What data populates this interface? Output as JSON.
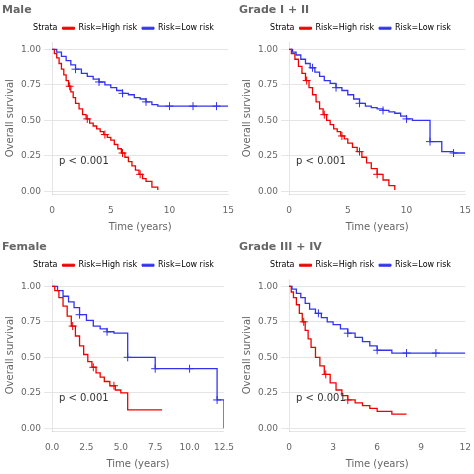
{
  "chart_data": [
    {
      "type": "step",
      "title": "Male",
      "x_label": "Time (years)",
      "y_label": "Overall survival",
      "xlim": [
        0,
        15
      ],
      "ylim": [
        -0.02,
        1.05
      ],
      "xticks": [
        0,
        5,
        10,
        15
      ],
      "yticks": [
        {
          "value": 0,
          "label": "0.00"
        },
        0.25,
        {
          "value": 0.5,
          "label": "0.50"
        },
        0.75,
        {
          "value": 1,
          "label": "1.00"
        }
      ],
      "grid": "y",
      "legend": "top",
      "legend_title": "Strata",
      "annotation": "p < 0.001",
      "series": [
        {
          "name": "Risk=High risk",
          "color": "#EE0000",
          "marker": "cross",
          "x": [
            0,
            0.2,
            0.4,
            0.6,
            0.8,
            1.0,
            1.2,
            1.4,
            1.6,
            1.8,
            2.0,
            2.3,
            2.6,
            2.9,
            3.2,
            3.5,
            3.8,
            4.1,
            4.4,
            4.7,
            5.0,
            5.3,
            5.6,
            5.9,
            6.2,
            6.5,
            6.8,
            7.1,
            7.4,
            7.7,
            8.0,
            8.5,
            9.0
          ],
          "values": [
            1.0,
            0.97,
            0.94,
            0.9,
            0.86,
            0.82,
            0.78,
            0.74,
            0.7,
            0.66,
            0.62,
            0.58,
            0.54,
            0.51,
            0.48,
            0.46,
            0.44,
            0.42,
            0.4,
            0.38,
            0.36,
            0.33,
            0.3,
            0.27,
            0.24,
            0.21,
            0.18,
            0.15,
            0.12,
            0.09,
            0.07,
            0.03,
            0.01
          ],
          "censor_x": [
            1.5,
            3.0,
            4.5,
            6.0,
            7.5
          ],
          "censor_values": [
            0.74,
            0.51,
            0.4,
            0.27,
            0.12
          ]
        },
        {
          "name": "Risk=Low risk",
          "color": "#3333EE",
          "marker": "cross",
          "x": [
            0,
            0.4,
            0.8,
            1.2,
            1.6,
            2.0,
            2.5,
            3.0,
            3.5,
            4.0,
            4.5,
            5.0,
            5.5,
            6.0,
            6.5,
            7.0,
            7.5,
            8.0,
            8.5,
            9.0,
            10.0,
            11.0,
            12.0,
            13.0,
            14.0,
            15.0
          ],
          "values": [
            1.0,
            0.98,
            0.95,
            0.92,
            0.89,
            0.86,
            0.83,
            0.81,
            0.79,
            0.77,
            0.75,
            0.73,
            0.71,
            0.69,
            0.68,
            0.66,
            0.65,
            0.63,
            0.61,
            0.6,
            0.6,
            0.6,
            0.6,
            0.6,
            0.6,
            0.6
          ],
          "censor_x": [
            2.0,
            4.0,
            6.0,
            8.0,
            10.0,
            12.0,
            14.0
          ],
          "censor_values": [
            0.86,
            0.77,
            0.69,
            0.63,
            0.6,
            0.6,
            0.6
          ]
        }
      ]
    },
    {
      "type": "step",
      "title": "Grade I + II",
      "x_label": "Time (years)",
      "y_label": "Overall survival",
      "xlim": [
        0,
        15
      ],
      "ylim": [
        -0.02,
        1.05
      ],
      "xticks": [
        0,
        5,
        10,
        15
      ],
      "yticks": [
        {
          "value": 0,
          "label": "0.00"
        },
        0.25,
        {
          "value": 0.5,
          "label": "0.50"
        },
        0.75,
        {
          "value": 1,
          "label": "1.00"
        }
      ],
      "grid": "y",
      "legend": "top",
      "legend_title": "Strata",
      "annotation": "p < 0.001",
      "series": [
        {
          "name": "Risk=High risk",
          "color": "#EE0000",
          "marker": "cross",
          "x": [
            0,
            0.2,
            0.5,
            0.8,
            1.1,
            1.4,
            1.7,
            2.0,
            2.3,
            2.6,
            2.9,
            3.2,
            3.5,
            3.8,
            4.1,
            4.4,
            4.7,
            5.0,
            5.4,
            5.8,
            6.2,
            6.6,
            7.0,
            7.5,
            8.0,
            8.5,
            9.0
          ],
          "values": [
            1.0,
            0.97,
            0.93,
            0.88,
            0.83,
            0.78,
            0.73,
            0.68,
            0.63,
            0.58,
            0.54,
            0.5,
            0.47,
            0.44,
            0.42,
            0.39,
            0.37,
            0.34,
            0.31,
            0.28,
            0.24,
            0.2,
            0.16,
            0.12,
            0.08,
            0.04,
            0.01
          ],
          "censor_x": [
            1.5,
            3.0,
            4.5,
            6.0,
            7.5
          ],
          "censor_values": [
            0.78,
            0.54,
            0.39,
            0.28,
            0.12
          ]
        },
        {
          "name": "Risk=Low risk",
          "color": "#3333EE",
          "marker": "cross",
          "x": [
            0,
            0.3,
            0.6,
            1.0,
            1.4,
            1.8,
            2.2,
            2.6,
            3.0,
            3.5,
            4.0,
            4.5,
            5.0,
            5.5,
            6.0,
            6.5,
            7.0,
            7.5,
            8.0,
            8.5,
            9.0,
            9.5,
            10.0,
            10.5,
            11.0,
            12.0,
            13.0,
            14.0,
            15.0
          ],
          "values": [
            1.0,
            0.98,
            0.96,
            0.93,
            0.9,
            0.87,
            0.84,
            0.81,
            0.78,
            0.76,
            0.73,
            0.71,
            0.68,
            0.65,
            0.62,
            0.6,
            0.59,
            0.58,
            0.57,
            0.56,
            0.55,
            0.53,
            0.51,
            0.5,
            0.5,
            0.35,
            0.28,
            0.27,
            0.27
          ],
          "censor_x": [
            2.0,
            4.0,
            6.0,
            8.0,
            10.0,
            12.0,
            14.0
          ],
          "censor_values": [
            0.87,
            0.73,
            0.62,
            0.57,
            0.51,
            0.35,
            0.27
          ]
        }
      ]
    },
    {
      "type": "step",
      "title": "Female",
      "x_label": "Time (years)",
      "y_label": "Overall survival",
      "xlim": [
        0,
        12.5
      ],
      "ylim": [
        -0.02,
        1.05
      ],
      "xticks": [
        {
          "value": 0,
          "label": "0.0"
        },
        2.5,
        {
          "value": 5,
          "label": "5.0"
        },
        7.5,
        {
          "value": 10,
          "label": "10.0"
        },
        12.5
      ],
      "yticks": [
        {
          "value": 0,
          "label": "0.00"
        },
        0.25,
        {
          "value": 0.5,
          "label": "0.50"
        },
        0.75,
        {
          "value": 1,
          "label": "1.00"
        }
      ],
      "grid": "y",
      "legend": "top",
      "legend_title": "Strata",
      "annotation": "p < 0.001",
      "series": [
        {
          "name": "Risk=High risk",
          "color": "#EE0000",
          "marker": "cross",
          "x": [
            0,
            0.2,
            0.5,
            0.8,
            1.1,
            1.4,
            1.7,
            2.0,
            2.3,
            2.6,
            2.9,
            3.2,
            3.5,
            3.8,
            4.2,
            4.6,
            5.0,
            5.5,
            6.0,
            6.5,
            7.0,
            7.5,
            8.0
          ],
          "values": [
            1.0,
            0.97,
            0.92,
            0.86,
            0.79,
            0.72,
            0.65,
            0.58,
            0.52,
            0.47,
            0.43,
            0.39,
            0.36,
            0.33,
            0.3,
            0.27,
            0.25,
            0.13,
            0.13,
            0.13,
            0.13,
            0.13,
            0.13
          ],
          "censor_x": [
            1.5,
            3.0,
            4.5
          ],
          "censor_values": [
            0.72,
            0.43,
            0.3
          ]
        },
        {
          "name": "Risk=Low risk",
          "color": "#3333EE",
          "marker": "cross",
          "x": [
            0,
            0.4,
            0.8,
            1.2,
            1.6,
            2.0,
            2.5,
            3.0,
            3.5,
            4.0,
            4.5,
            5.0,
            5.5,
            6.0,
            6.5,
            7.0,
            7.5,
            8.0,
            9.0,
            10.0,
            11.0,
            12.0,
            12.5
          ],
          "values": [
            1.0,
            0.97,
            0.93,
            0.89,
            0.85,
            0.8,
            0.76,
            0.72,
            0.7,
            0.68,
            0.67,
            0.67,
            0.5,
            0.5,
            0.5,
            0.5,
            0.42,
            0.42,
            0.42,
            0.42,
            0.42,
            0.2,
            0.0
          ],
          "censor_x": [
            2.0,
            4.0,
            5.5,
            7.5,
            10.0,
            12.0
          ],
          "censor_values": [
            0.8,
            0.68,
            0.5,
            0.42,
            0.42,
            0.2
          ]
        }
      ]
    },
    {
      "type": "step",
      "title": "Grade III + IV",
      "x_label": "Time (years)",
      "y_label": "Overall survival",
      "xlim": [
        0,
        12
      ],
      "ylim": [
        -0.02,
        1.05
      ],
      "xticks": [
        0,
        3,
        6,
        9,
        12
      ],
      "yticks": [
        {
          "value": 0,
          "label": "0.00"
        },
        0.25,
        {
          "value": 0.5,
          "label": "0.50"
        },
        0.75,
        {
          "value": 1,
          "label": "1.00"
        }
      ],
      "grid": "y",
      "legend": "top",
      "legend_title": "Strata",
      "annotation": "p < 0.001",
      "series": [
        {
          "name": "Risk=High risk",
          "color": "#EE0000",
          "marker": "cross",
          "x": [
            0,
            0.15,
            0.3,
            0.5,
            0.7,
            0.9,
            1.1,
            1.3,
            1.5,
            1.8,
            2.1,
            2.4,
            2.8,
            3.2,
            3.6,
            4.0,
            4.5,
            5.0,
            5.5,
            6.0,
            7.0,
            8.0
          ],
          "values": [
            1.0,
            0.96,
            0.92,
            0.87,
            0.81,
            0.75,
            0.69,
            0.63,
            0.57,
            0.5,
            0.44,
            0.38,
            0.32,
            0.27,
            0.23,
            0.2,
            0.18,
            0.16,
            0.14,
            0.12,
            0.1,
            0.1
          ],
          "censor_x": [
            1.0,
            2.5,
            4.0
          ],
          "censor_values": [
            0.75,
            0.38,
            0.2
          ]
        },
        {
          "name": "Risk=Low risk",
          "color": "#3333EE",
          "marker": "cross",
          "x": [
            0,
            0.2,
            0.5,
            0.8,
            1.1,
            1.4,
            1.8,
            2.2,
            2.6,
            3.0,
            3.5,
            4.0,
            4.5,
            5.0,
            5.5,
            6.0,
            7.0,
            8.0,
            9.0,
            10.0,
            11.0,
            12.0
          ],
          "values": [
            1.0,
            0.98,
            0.95,
            0.92,
            0.88,
            0.84,
            0.81,
            0.78,
            0.75,
            0.73,
            0.7,
            0.67,
            0.64,
            0.61,
            0.58,
            0.55,
            0.53,
            0.53,
            0.53,
            0.53,
            0.53,
            0.53
          ],
          "censor_x": [
            2.0,
            4.0,
            6.0,
            8.0,
            10.0
          ],
          "censor_values": [
            0.81,
            0.67,
            0.55,
            0.53,
            0.53
          ]
        }
      ]
    }
  ]
}
